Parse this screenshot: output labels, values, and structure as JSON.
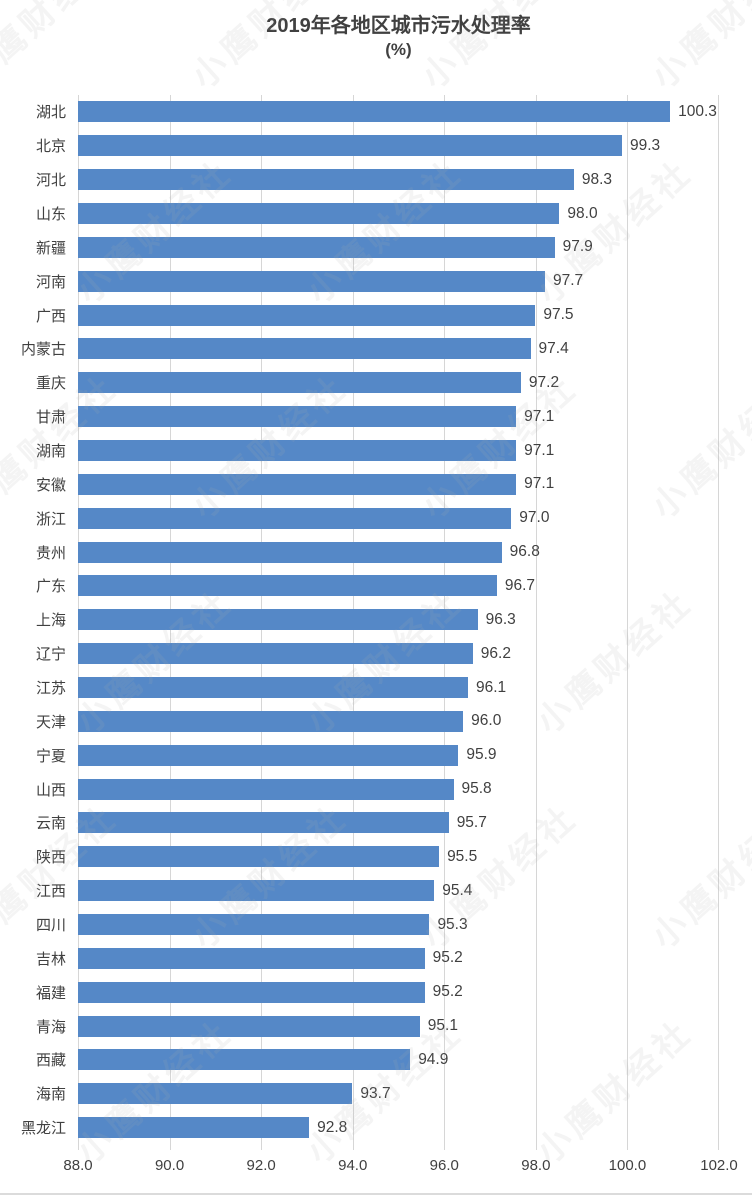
{
  "watermark": {
    "text": "小鹰财经社",
    "color": "#AFAFAF"
  },
  "chart_data": {
    "type": "bar",
    "orientation": "horizontal",
    "title": "2019年各地区城市污水处理率",
    "subtitle": "(%)",
    "categories": [
      "湖北",
      "北京",
      "河北",
      "山东",
      "新疆",
      "河南",
      "广西",
      "内蒙古",
      "重庆",
      "甘肃",
      "湖南",
      "安徽",
      "浙江",
      "贵州",
      "广东",
      "上海",
      "辽宁",
      "江苏",
      "天津",
      "宁夏",
      "山西",
      "云南",
      "陕西",
      "江西",
      "四川",
      "吉林",
      "福建",
      "青海",
      "西藏",
      "海南",
      "黑龙江"
    ],
    "values": [
      100.3,
      99.3,
      98.3,
      98.0,
      97.9,
      97.7,
      97.5,
      97.4,
      97.2,
      97.1,
      97.1,
      97.1,
      97.0,
      96.8,
      96.7,
      96.3,
      96.2,
      96.1,
      96.0,
      95.9,
      95.8,
      95.7,
      95.5,
      95.4,
      95.3,
      95.2,
      95.2,
      95.1,
      94.9,
      93.7,
      92.8
    ],
    "display_values": [
      "100.3",
      "99.3",
      "98.3",
      "98.0",
      "97.9",
      "97.7",
      "97.5",
      "97.4",
      "97.2",
      "97.1",
      "97.1",
      "97.1",
      "97.0",
      "96.8",
      "96.7",
      "96.3",
      "96.2",
      "96.1",
      "96.0",
      "95.9",
      "95.8",
      "95.7",
      "95.5",
      "95.4",
      "95.3",
      "95.2",
      "95.2",
      "95.1",
      "94.9",
      "93.7",
      "92.8"
    ],
    "x_ticks": [
      "88.0",
      "90.0",
      "92.0",
      "94.0",
      "96.0",
      "98.0",
      "100.0",
      "102.0"
    ],
    "xlim": [
      88.0,
      102.0
    ],
    "grid": true,
    "legend": "none",
    "bar_color": "#5588C7",
    "gridline_color": "#D6D6D6",
    "text_color": "#404040"
  }
}
